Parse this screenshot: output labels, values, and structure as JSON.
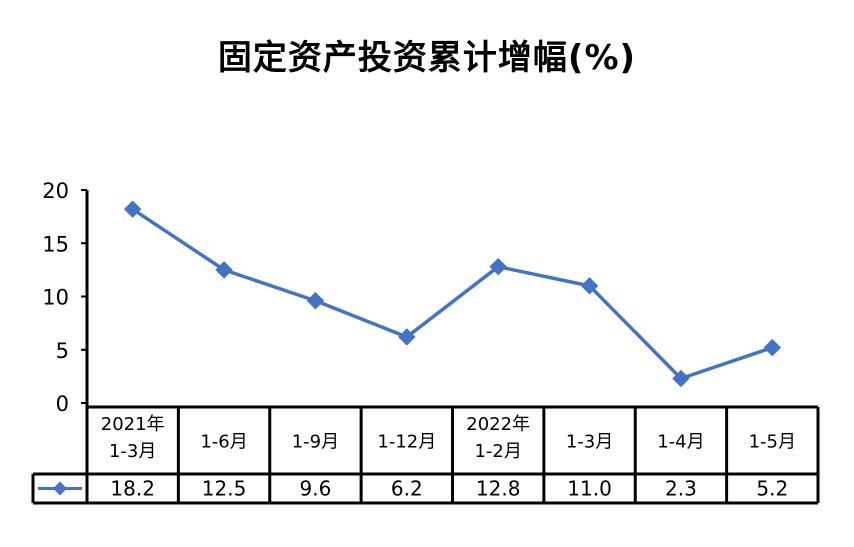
{
  "chart_data": {
    "type": "line",
    "title": "固定资产投资累计增幅(%)",
    "categories": [
      [
        "2021年",
        "1-3月"
      ],
      [
        "1-6月"
      ],
      [
        "1-9月"
      ],
      [
        "1-12月"
      ],
      [
        "2022年",
        "1-2月"
      ],
      [
        "1-3月"
      ],
      [
        "1-4月"
      ],
      [
        "1-5月"
      ]
    ],
    "values": [
      18.2,
      12.5,
      9.6,
      6.2,
      12.8,
      11.0,
      2.3,
      5.2
    ],
    "value_labels": [
      "18.2",
      "12.5",
      "9.6",
      "6.2",
      "12.8",
      "11.0",
      "2.3",
      "5.2"
    ],
    "yticks": [
      "0",
      "5",
      "10",
      "15",
      "20"
    ],
    "ylim": [
      0,
      20
    ],
    "grid": false,
    "legend": "data-table",
    "series_color": "#4472c4",
    "marker": "diamond"
  }
}
